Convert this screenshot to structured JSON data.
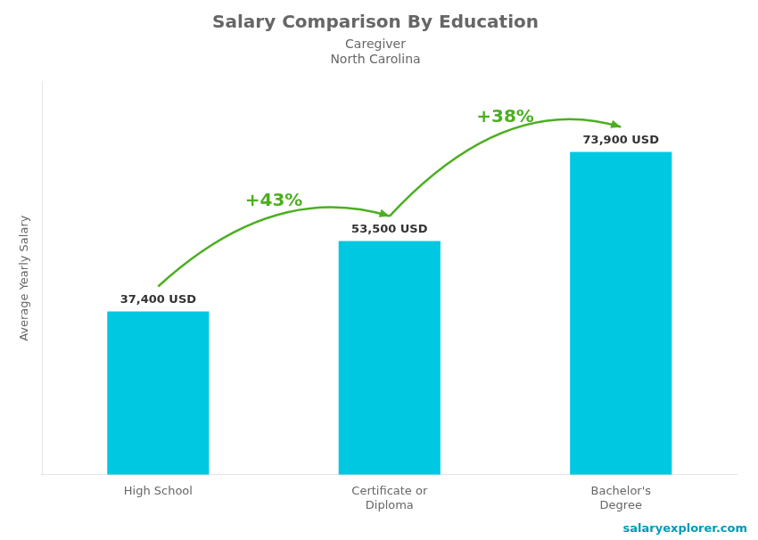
{
  "chart_data": {
    "type": "bar",
    "title": "Salary Comparison By Education",
    "subtitle": [
      "Caregiver",
      "North Carolina"
    ],
    "ylabel": "Average Yearly Salary",
    "categories": [
      "High School",
      "Certificate or\nDiploma",
      "Bachelor's\nDegree"
    ],
    "values": [
      37400,
      53500,
      73900
    ],
    "value_labels": [
      "37,400 USD",
      "53,500 USD",
      "73,900 USD"
    ],
    "data_labels": true,
    "annotations": [
      "+43%",
      "+38%",
      "salaryexplorer.com"
    ],
    "color": "#00c8e0",
    "ylim": [
      0,
      90000
    ],
    "grid": false,
    "tick_labels": "x",
    "legend": false
  }
}
